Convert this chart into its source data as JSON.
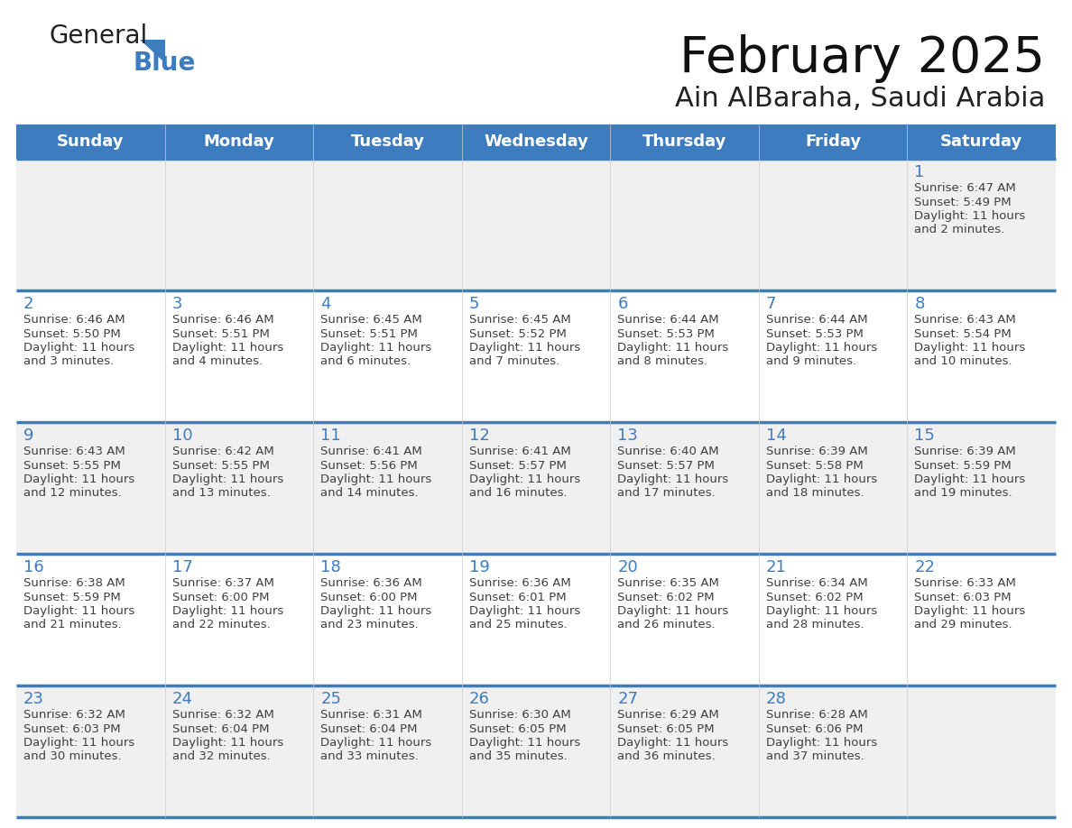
{
  "title": "February 2025",
  "subtitle": "Ain AlBaraha, Saudi Arabia",
  "days_of_week": [
    "Sunday",
    "Monday",
    "Tuesday",
    "Wednesday",
    "Thursday",
    "Friday",
    "Saturday"
  ],
  "header_bg": "#3D7DBF",
  "header_text": "#FFFFFF",
  "row_bg_odd": "#F0F0F0",
  "row_bg_even": "#FFFFFF",
  "separator_color": "#3D7DBF",
  "day_number_color": "#3D7DBF",
  "text_color": "#404040",
  "calendar_data": [
    [
      null,
      null,
      null,
      null,
      null,
      null,
      1
    ],
    [
      2,
      3,
      4,
      5,
      6,
      7,
      8
    ],
    [
      9,
      10,
      11,
      12,
      13,
      14,
      15
    ],
    [
      16,
      17,
      18,
      19,
      20,
      21,
      22
    ],
    [
      23,
      24,
      25,
      26,
      27,
      28,
      null
    ]
  ],
  "sunrise_data": {
    "1": "6:47 AM",
    "2": "6:46 AM",
    "3": "6:46 AM",
    "4": "6:45 AM",
    "5": "6:45 AM",
    "6": "6:44 AM",
    "7": "6:44 AM",
    "8": "6:43 AM",
    "9": "6:43 AM",
    "10": "6:42 AM",
    "11": "6:41 AM",
    "12": "6:41 AM",
    "13": "6:40 AM",
    "14": "6:39 AM",
    "15": "6:39 AM",
    "16": "6:38 AM",
    "17": "6:37 AM",
    "18": "6:36 AM",
    "19": "6:36 AM",
    "20": "6:35 AM",
    "21": "6:34 AM",
    "22": "6:33 AM",
    "23": "6:32 AM",
    "24": "6:32 AM",
    "25": "6:31 AM",
    "26": "6:30 AM",
    "27": "6:29 AM",
    "28": "6:28 AM"
  },
  "sunset_data": {
    "1": "5:49 PM",
    "2": "5:50 PM",
    "3": "5:51 PM",
    "4": "5:51 PM",
    "5": "5:52 PM",
    "6": "5:53 PM",
    "7": "5:53 PM",
    "8": "5:54 PM",
    "9": "5:55 PM",
    "10": "5:55 PM",
    "11": "5:56 PM",
    "12": "5:57 PM",
    "13": "5:57 PM",
    "14": "5:58 PM",
    "15": "5:59 PM",
    "16": "5:59 PM",
    "17": "6:00 PM",
    "18": "6:00 PM",
    "19": "6:01 PM",
    "20": "6:02 PM",
    "21": "6:02 PM",
    "22": "6:03 PM",
    "23": "6:03 PM",
    "24": "6:04 PM",
    "25": "6:04 PM",
    "26": "6:05 PM",
    "27": "6:05 PM",
    "28": "6:06 PM"
  },
  "daylight_data": {
    "1": "11 hours and 2 minutes.",
    "2": "11 hours and 3 minutes.",
    "3": "11 hours and 4 minutes.",
    "4": "11 hours and 6 minutes.",
    "5": "11 hours and 7 minutes.",
    "6": "11 hours and 8 minutes.",
    "7": "11 hours and 9 minutes.",
    "8": "11 hours and 10 minutes.",
    "9": "11 hours and 12 minutes.",
    "10": "11 hours and 13 minutes.",
    "11": "11 hours and 14 minutes.",
    "12": "11 hours and 16 minutes.",
    "13": "11 hours and 17 minutes.",
    "14": "11 hours and 18 minutes.",
    "15": "11 hours and 19 minutes.",
    "16": "11 hours and 21 minutes.",
    "17": "11 hours and 22 minutes.",
    "18": "11 hours and 23 minutes.",
    "19": "11 hours and 25 minutes.",
    "20": "11 hours and 26 minutes.",
    "21": "11 hours and 28 minutes.",
    "22": "11 hours and 29 minutes.",
    "23": "11 hours and 30 minutes.",
    "24": "11 hours and 32 minutes.",
    "25": "11 hours and 33 minutes.",
    "26": "11 hours and 35 minutes.",
    "27": "11 hours and 36 minutes.",
    "28": "11 hours and 37 minutes."
  },
  "logo_text_general": "General",
  "logo_text_blue": "Blue",
  "logo_triangle_color": "#3D7DBF",
  "fig_width": 11.88,
  "fig_height": 9.18,
  "dpi": 100
}
